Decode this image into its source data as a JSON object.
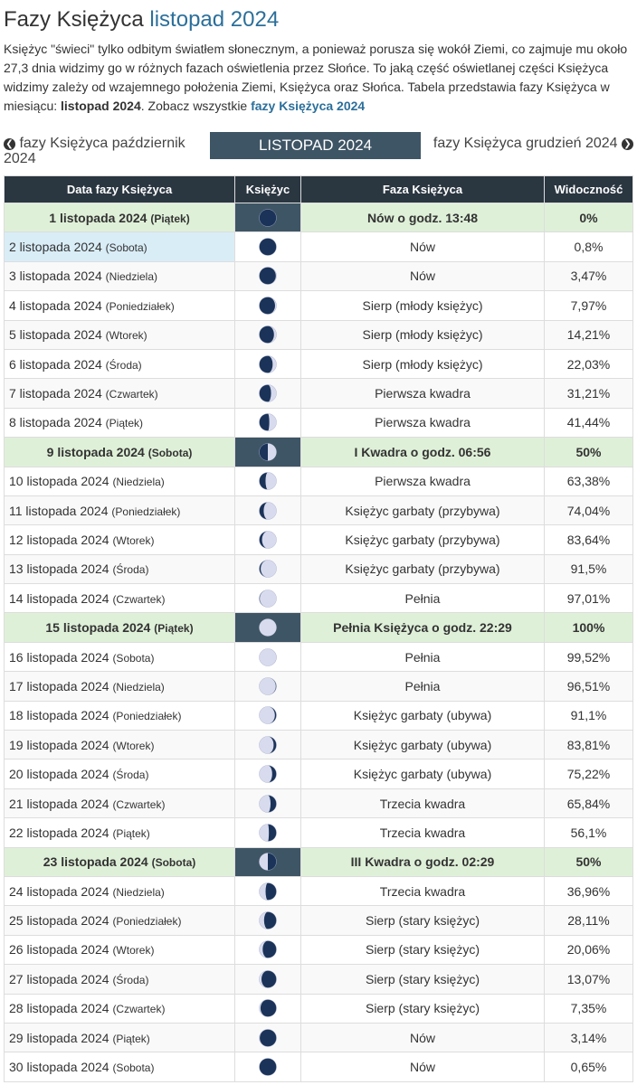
{
  "title": {
    "prefix": "Fazy Księżyca",
    "month": "listopad 2024"
  },
  "intro": {
    "text": "Księżyc \"świeci\" tylko odbitym światłem słonecznym, a ponieważ porusza się wokół Ziemi, co zajmuje mu około 27,3 dnia widzimy go w różnych fazach oświetlenia przez Słońce. To jaką część oświetlanej części Księżyca widzimy zależy od wzajemnego położenia Ziemi, Księżyca oraz Słońca. Tabela przedstawia fazy Księżyca w miesiącu: ",
    "bold": "listopad 2024",
    "after": ". Zobacz wszystkie ",
    "link": "fazy Księżyca 2024"
  },
  "nav": {
    "prev": "fazy Księżyca październik 2024",
    "current": "LISTOPAD 2024",
    "next": "fazy Księżyca grudzień 2024"
  },
  "headers": [
    "Data fazy Księżyca",
    "Księżyc",
    "Faza Księżyca",
    "Widoczność"
  ],
  "colors": {
    "dark": "#1b3358",
    "light": "#d8dbee"
  },
  "rows": [
    {
      "date": "1 listopada 2024",
      "day": "(Piątek)",
      "phase": "Nów o godz. 13:48",
      "vis": "0%",
      "f": 0,
      "w": 1,
      "hl": 1
    },
    {
      "date": "2 listopada 2024",
      "day": "(Sobota)",
      "phase": "Nów",
      "vis": "0,8%",
      "f": 0.008,
      "w": 1
    },
    {
      "date": "3 listopada 2024",
      "day": "(Niedziela)",
      "phase": "Nów",
      "vis": "3,47%",
      "f": 0.0347,
      "w": 1
    },
    {
      "date": "4 listopada 2024",
      "day": "(Poniedziałek)",
      "phase": "Sierp (młody księżyc)",
      "vis": "7,97%",
      "f": 0.0797,
      "w": 1
    },
    {
      "date": "5 listopada 2024",
      "day": "(Wtorek)",
      "phase": "Sierp (młody księżyc)",
      "vis": "14,21%",
      "f": 0.1421,
      "w": 1
    },
    {
      "date": "6 listopada 2024",
      "day": "(Środa)",
      "phase": "Sierp (młody księżyc)",
      "vis": "22,03%",
      "f": 0.2203,
      "w": 1
    },
    {
      "date": "7 listopada 2024",
      "day": "(Czwartek)",
      "phase": "Pierwsza kwadra",
      "vis": "31,21%",
      "f": 0.3121,
      "w": 1
    },
    {
      "date": "8 listopada 2024",
      "day": "(Piątek)",
      "phase": "Pierwsza kwadra",
      "vis": "41,44%",
      "f": 0.4144,
      "w": 1
    },
    {
      "date": "9 listopada 2024",
      "day": "(Sobota)",
      "phase": "I Kwadra o godz. 06:56",
      "vis": "50%",
      "f": 0.5,
      "w": 1,
      "hl": 1
    },
    {
      "date": "10 listopada 2024",
      "day": "(Niedziela)",
      "phase": "Pierwsza kwadra",
      "vis": "63,38%",
      "f": 0.6338,
      "w": 1
    },
    {
      "date": "11 listopada 2024",
      "day": "(Poniedziałek)",
      "phase": "Księżyc garbaty (przybywa)",
      "vis": "74,04%",
      "f": 0.7404,
      "w": 1
    },
    {
      "date": "12 listopada 2024",
      "day": "(Wtorek)",
      "phase": "Księżyc garbaty (przybywa)",
      "vis": "83,64%",
      "f": 0.8364,
      "w": 1
    },
    {
      "date": "13 listopada 2024",
      "day": "(Środa)",
      "phase": "Księżyc garbaty (przybywa)",
      "vis": "91,5%",
      "f": 0.915,
      "w": 1
    },
    {
      "date": "14 listopada 2024",
      "day": "(Czwartek)",
      "phase": "Pełnia",
      "vis": "97,01%",
      "f": 0.9701,
      "w": 1
    },
    {
      "date": "15 listopada 2024",
      "day": "(Piątek)",
      "phase": "Pełnia Księżyca o godz. 22:29",
      "vis": "100%",
      "f": 1,
      "w": 1,
      "hl": 1
    },
    {
      "date": "16 listopada 2024",
      "day": "(Sobota)",
      "phase": "Pełnia",
      "vis": "99,52%",
      "f": 0.9952,
      "w": 0
    },
    {
      "date": "17 listopada 2024",
      "day": "(Niedziela)",
      "phase": "Pełnia",
      "vis": "96,51%",
      "f": 0.9651,
      "w": 0
    },
    {
      "date": "18 listopada 2024",
      "day": "(Poniedziałek)",
      "phase": "Księżyc garbaty (ubywa)",
      "vis": "91,1%",
      "f": 0.911,
      "w": 0
    },
    {
      "date": "19 listopada 2024",
      "day": "(Wtorek)",
      "phase": "Księżyc garbaty (ubywa)",
      "vis": "83,81%",
      "f": 0.8381,
      "w": 0
    },
    {
      "date": "20 listopada 2024",
      "day": "(Środa)",
      "phase": "Księżyc garbaty (ubywa)",
      "vis": "75,22%",
      "f": 0.7522,
      "w": 0
    },
    {
      "date": "21 listopada 2024",
      "day": "(Czwartek)",
      "phase": "Trzecia kwadra",
      "vis": "65,84%",
      "f": 0.6584,
      "w": 0
    },
    {
      "date": "22 listopada 2024",
      "day": "(Piątek)",
      "phase": "Trzecia kwadra",
      "vis": "56,1%",
      "f": 0.561,
      "w": 0
    },
    {
      "date": "23 listopada 2024",
      "day": "(Sobota)",
      "phase": "III Kwadra o godz. 02:29",
      "vis": "50%",
      "f": 0.5,
      "w": 0,
      "hl": 1
    },
    {
      "date": "24 listopada 2024",
      "day": "(Niedziela)",
      "phase": "Trzecia kwadra",
      "vis": "36,96%",
      "f": 0.3696,
      "w": 0
    },
    {
      "date": "25 listopada 2024",
      "day": "(Poniedziałek)",
      "phase": "Sierp (stary księżyc)",
      "vis": "28,11%",
      "f": 0.2811,
      "w": 0
    },
    {
      "date": "26 listopada 2024",
      "day": "(Wtorek)",
      "phase": "Sierp (stary księżyc)",
      "vis": "20,06%",
      "f": 0.2006,
      "w": 0
    },
    {
      "date": "27 listopada 2024",
      "day": "(Środa)",
      "phase": "Sierp (stary księżyc)",
      "vis": "13,07%",
      "f": 0.1307,
      "w": 0
    },
    {
      "date": "28 listopada 2024",
      "day": "(Czwartek)",
      "phase": "Sierp (stary księżyc)",
      "vis": "7,35%",
      "f": 0.0735,
      "w": 0
    },
    {
      "date": "29 listopada 2024",
      "day": "(Piątek)",
      "phase": "Nów",
      "vis": "3,14%",
      "f": 0.0314,
      "w": 0
    },
    {
      "date": "30 listopada 2024",
      "day": "(Sobota)",
      "phase": "Nów",
      "vis": "0,65%",
      "f": 0.0065,
      "w": 0
    }
  ]
}
